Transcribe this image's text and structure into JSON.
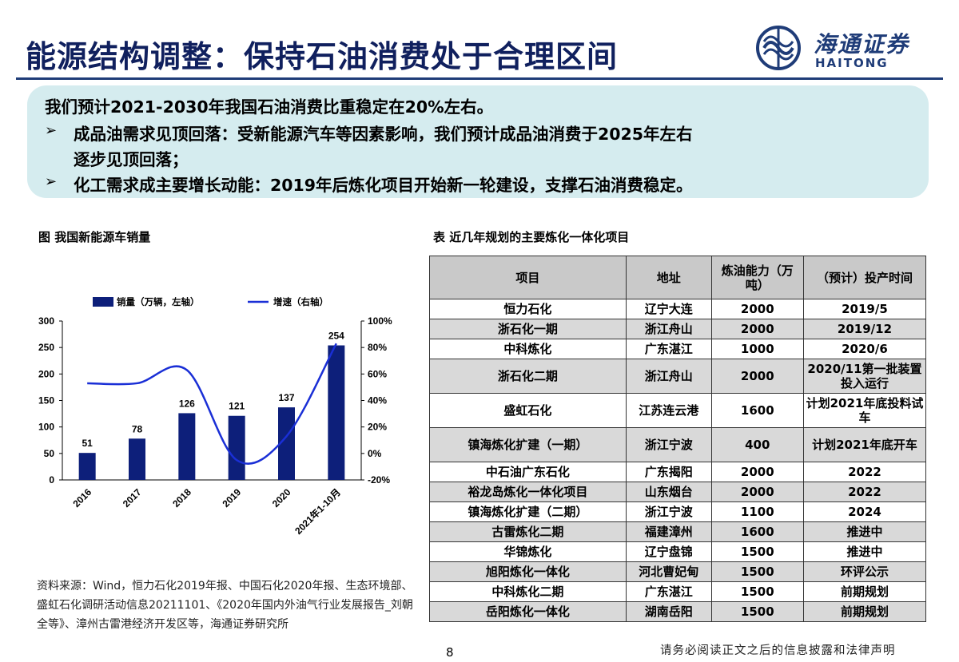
{
  "header": {
    "title": "能源结构调整：保持石油消费处于合理区间",
    "logo_cn": "海通证券",
    "logo_en": "HAITONG"
  },
  "summary": {
    "line1": "我们预计2021-2030年我国石油消费比重稳定在20%左右。",
    "line2": "成品油需求见顶回落：受新能源汽车等因素影响，我们预计成品油消费于2025年左右",
    "line3": "逐步见顶回落；",
    "line4": "化工需求成主要增长动能：2019年后炼化项目开始新一轮建设，支撑石油消费稳定。",
    "bullet": "➢"
  },
  "figure": {
    "title": "图 我国新能源车销量",
    "source": "资料来源：Wind，恒力石化2019年报、中国石化2020年报、生态环境部、盛虹石化调研活动信息20211101、《2020年国内外油气行业发展报告_刘朝全等》、漳州古雷港经济开发区等，海通证券研究所"
  },
  "chart_data": {
    "type": "bar",
    "categories": [
      "2016",
      "2017",
      "2018",
      "2019",
      "2020",
      "2021年1-10月"
    ],
    "series": [
      {
        "name": "销量（万辆，左轴）",
        "type": "bar",
        "axis": "left",
        "values": [
          51,
          78,
          126,
          121,
          137,
          254
        ],
        "color": "#0d1f7a"
      },
      {
        "name": "增速（右轴）",
        "type": "line",
        "axis": "right",
        "values": [
          53,
          53,
          63,
          -5,
          13,
          83
        ],
        "unit": "%",
        "color": "#1a2fd6"
      }
    ],
    "y_left": {
      "min": 0,
      "max": 300,
      "ticks": [
        "0",
        "50",
        "100",
        "150",
        "200",
        "250",
        "300"
      ]
    },
    "y_right": {
      "min": -20,
      "max": 100,
      "ticks": [
        "-20%",
        "0%",
        "20%",
        "40%",
        "60%",
        "80%",
        "100%"
      ]
    },
    "legend": "top",
    "grid": false
  },
  "table": {
    "title": "表 近几年规划的主要炼化一体化项目",
    "headers": {
      "project": "项目",
      "location": "地址",
      "capacity": "炼油能力（万吨）",
      "time": "（预计）投产时间"
    },
    "rows": [
      {
        "project": "恒力石化",
        "location": "辽宁大连",
        "capacity": "2000",
        "time": "2019/5"
      },
      {
        "project": "浙石化一期",
        "location": "浙江舟山",
        "capacity": "2000",
        "time": "2019/12"
      },
      {
        "project": "中科炼化",
        "location": "广东湛江",
        "capacity": "1000",
        "time": "2020/6"
      },
      {
        "project": "浙石化二期",
        "location": "浙江舟山",
        "capacity": "2000",
        "time": "2020/11第一批装置投入运行"
      },
      {
        "project": "盛虹石化",
        "location": "江苏连云港",
        "capacity": "1600",
        "time": "计划2021年底投料试车"
      },
      {
        "project": "镇海炼化扩建（一期）",
        "location": "浙江宁波",
        "capacity": "400",
        "time": "计划2021年底开车"
      },
      {
        "project": "中石油广东石化",
        "location": "广东揭阳",
        "capacity": "2000",
        "time": "2022"
      },
      {
        "project": "裕龙岛炼化一体化项目",
        "location": "山东烟台",
        "capacity": "2000",
        "time": "2022"
      },
      {
        "project": "镇海炼化扩建（二期）",
        "location": "浙江宁波",
        "capacity": "1100",
        "time": "2024"
      },
      {
        "project": "古雷炼化二期",
        "location": "福建漳州",
        "capacity": "1600",
        "time": "推进中"
      },
      {
        "project": "华锦炼化",
        "location": "辽宁盘锦",
        "capacity": "1500",
        "time": "推进中"
      },
      {
        "project": "旭阳炼化一体化",
        "location": "河北曹妃甸",
        "capacity": "1500",
        "time": "环评公示"
      },
      {
        "project": "中科炼化二期",
        "location": "广东湛江",
        "capacity": "1500",
        "time": "前期规划"
      },
      {
        "project": "岳阳炼化一体化",
        "location": "湖南岳阳",
        "capacity": "1500",
        "time": "前期规划"
      }
    ]
  },
  "footer": {
    "page": "8",
    "notice": "请务必阅读正文之后的信息披露和法律声明"
  }
}
